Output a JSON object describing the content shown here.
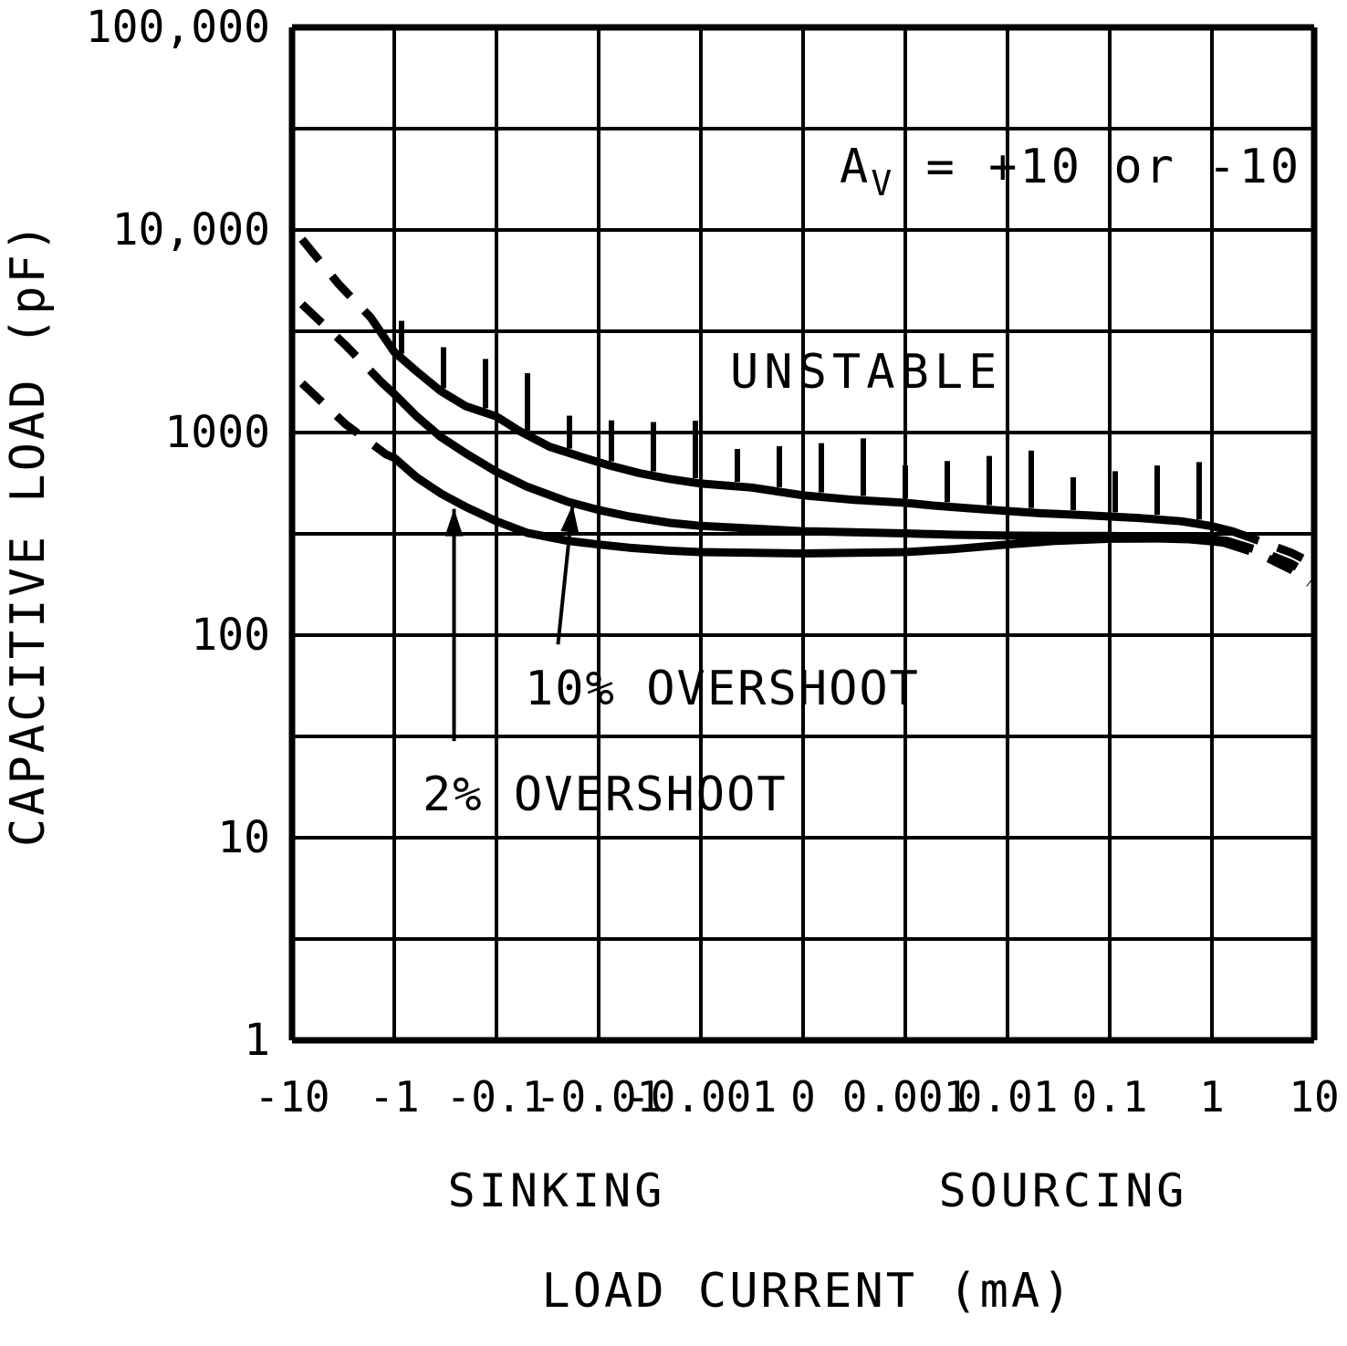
{
  "chart_data": {
    "type": "line",
    "title": "",
    "xlabel": "LOAD CURRENT (mA)",
    "ylabel": "CAPACITIVE LOAD (pF)",
    "x_scale": "symlog, linear between -0.001 and 0.001, one decade per grid column",
    "y_scale": "log",
    "ylim": [
      1,
      100000
    ],
    "xlim": [
      -10,
      10
    ],
    "grid": true,
    "x_ticks": [
      -10,
      -1,
      -0.1,
      -0.01,
      -0.001,
      0,
      0.001,
      0.01,
      0.1,
      1,
      10
    ],
    "x_tick_labels": [
      "-10",
      "-1",
      "-0.1",
      "-0.01",
      "-0.001",
      "0",
      "0.001",
      "0.01",
      "0.1",
      "1",
      "10"
    ],
    "y_tick_labels": [
      "1",
      "10",
      "100",
      "1000",
      "10,000",
      "100,000"
    ],
    "annotation": {
      "a": "A",
      "sub": "V",
      "rest": " = +10 or -10"
    },
    "labels": {
      "unstable": "UNSTABLE",
      "overshoot10": "10% OVERSHOOT",
      "overshoot2": "2% OVERSHOOT"
    },
    "region_labels": {
      "sinking": "SINKING",
      "sourcing": "SOURCING"
    },
    "unstable_region_marking": "short vertical hatch ticks above the top boundary curve",
    "series": [
      {
        "name": "unstable-boundary",
        "units": "x: load current mA, y: capacitive load pF",
        "dash_left": [
          [
            -8,
            9000
          ],
          [
            -3.5,
            5400
          ],
          [
            -1.7,
            3700
          ]
        ],
        "solid": [
          [
            -1.7,
            3700
          ],
          [
            -1,
            2500
          ],
          [
            -0.6,
            2000
          ],
          [
            -0.35,
            1600
          ],
          [
            -0.2,
            1350
          ],
          [
            -0.1,
            1200
          ],
          [
            -0.06,
            1020
          ],
          [
            -0.03,
            850
          ],
          [
            -0.015,
            760
          ],
          [
            -0.008,
            690
          ],
          [
            -0.004,
            630
          ],
          [
            -0.002,
            590
          ],
          [
            -0.001,
            560
          ],
          [
            -0.0005,
            535
          ],
          [
            0,
            490
          ],
          [
            0.0005,
            465
          ],
          [
            0.001,
            450
          ],
          [
            0.002,
            435
          ],
          [
            0.005,
            420
          ],
          [
            0.01,
            410
          ],
          [
            0.02,
            400
          ],
          [
            0.05,
            392
          ],
          [
            0.1,
            385
          ],
          [
            0.2,
            378
          ],
          [
            0.5,
            365
          ],
          [
            1,
            345
          ],
          [
            1.6,
            325
          ]
        ],
        "dash_right": [
          [
            1.6,
            325
          ],
          [
            3,
            290
          ],
          [
            6,
            255
          ],
          [
            9,
            230
          ]
        ]
      },
      {
        "name": "overshoot-10pct",
        "units": "x: load current mA, y: capacitive load pF",
        "dash_left": [
          [
            -8,
            4300
          ],
          [
            -3,
            2700
          ],
          [
            -1.3,
            1750
          ]
        ],
        "solid": [
          [
            -1.3,
            1750
          ],
          [
            -1,
            1550
          ],
          [
            -0.6,
            1200
          ],
          [
            -0.35,
            950
          ],
          [
            -0.2,
            790
          ],
          [
            -0.1,
            640
          ],
          [
            -0.05,
            540
          ],
          [
            -0.02,
            455
          ],
          [
            -0.01,
            415
          ],
          [
            -0.005,
            385
          ],
          [
            -0.002,
            358
          ],
          [
            -0.001,
            346
          ],
          [
            0,
            326
          ],
          [
            0.001,
            318
          ],
          [
            0.003,
            313
          ],
          [
            0.01,
            310
          ],
          [
            0.03,
            309
          ],
          [
            0.1,
            309
          ],
          [
            0.3,
            306
          ],
          [
            0.6,
            302
          ],
          [
            1,
            297
          ],
          [
            1.4,
            292
          ]
        ],
        "dash_right": [
          [
            1.4,
            292
          ],
          [
            3,
            260
          ],
          [
            6,
            225
          ],
          [
            9,
            200
          ]
        ]
      },
      {
        "name": "overshoot-2pct",
        "units": "x: load current mA, y: capacitive load pF",
        "dash_left": [
          [
            -8,
            1750
          ],
          [
            -3,
            1100
          ],
          [
            -1.2,
            780
          ]
        ],
        "solid": [
          [
            -1.2,
            780
          ],
          [
            -1,
            750
          ],
          [
            -0.6,
            600
          ],
          [
            -0.35,
            500
          ],
          [
            -0.2,
            430
          ],
          [
            -0.1,
            365
          ],
          [
            -0.05,
            320
          ],
          [
            -0.02,
            292
          ],
          [
            -0.01,
            280
          ],
          [
            -0.005,
            270
          ],
          [
            -0.002,
            261
          ],
          [
            -0.001,
            257
          ],
          [
            0,
            253
          ],
          [
            0.001,
            257
          ],
          [
            0.003,
            266
          ],
          [
            0.01,
            280
          ],
          [
            0.03,
            292
          ],
          [
            0.1,
            299
          ],
          [
            0.3,
            300
          ],
          [
            0.6,
            297
          ],
          [
            1,
            290
          ],
          [
            1.3,
            286
          ]
        ],
        "dash_right": [
          [
            1.3,
            286
          ],
          [
            3,
            250
          ],
          [
            6,
            210
          ],
          [
            9,
            180
          ]
        ]
      }
    ],
    "arrows": [
      {
        "label": "overshoot-10pct-arrow",
        "from": [
          -0.025,
          90
        ],
        "to": [
          -0.018,
          440
        ]
      },
      {
        "label": "overshoot-2pct-arrow",
        "from": [
          -0.26,
          30
        ],
        "to": [
          -0.26,
          420
        ]
      }
    ]
  }
}
